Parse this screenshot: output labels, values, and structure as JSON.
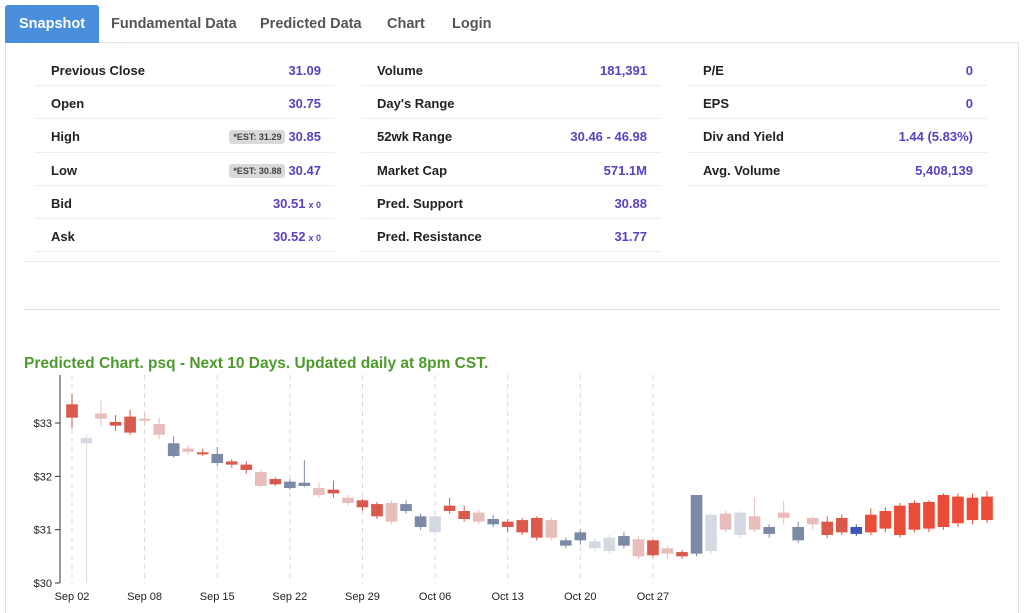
{
  "tabs": [
    {
      "label": "Snapshot",
      "active": true
    },
    {
      "label": "Fundamental Data",
      "active": false
    },
    {
      "label": "Predicted Data",
      "active": false
    },
    {
      "label": "Chart",
      "active": false
    },
    {
      "label": "Login",
      "active": false
    }
  ],
  "snapshot": {
    "col1": {
      "previous_close": {
        "label": "Previous Close",
        "value": "31.09"
      },
      "open": {
        "label": "Open",
        "value": "30.75"
      },
      "high": {
        "label": "High",
        "est": "*EST: 31.29",
        "value": "30.85"
      },
      "low": {
        "label": "Low",
        "est": "*EST: 30.88",
        "value": "30.47"
      },
      "bid": {
        "label": "Bid",
        "value": "30.51",
        "size": "x 0"
      },
      "ask": {
        "label": "Ask",
        "value": "30.52",
        "size": "x 0"
      }
    },
    "col2": {
      "volume": {
        "label": "Volume",
        "value": "181,391"
      },
      "days_range": {
        "label": "Day's Range",
        "value": ""
      },
      "wk52_range": {
        "label": "52wk Range",
        "value": "30.46 - 46.98"
      },
      "market_cap": {
        "label": "Market Cap",
        "value": "571.1M"
      },
      "pred_support": {
        "label": "Pred. Support",
        "value": "30.88"
      },
      "pred_resistance": {
        "label": "Pred. Resistance",
        "value": "31.77"
      }
    },
    "col3": {
      "pe": {
        "label": "P/E",
        "value": "0"
      },
      "eps": {
        "label": "EPS",
        "value": "0"
      },
      "div_yield": {
        "label": "Div and Yield",
        "value": "1.44 (5.83%)"
      },
      "avg_volume": {
        "label": "Avg. Volume",
        "value": "5,408,139"
      }
    }
  },
  "chart_title": "Predicted Chart. psq - Next 10 Days. Updated daily at 8pm CST.",
  "colors": {
    "accent": "#4a8fdc",
    "value": "#5b3fc4",
    "title_green": "#4d9a2c",
    "up_light": "#e9bdbb",
    "down_light": "#d5dae2",
    "up_dark": "#d9594c",
    "down_dark": "#7d8aa6",
    "pred": "#ea4c38",
    "today": "#3d55b8"
  },
  "chart_data": {
    "type": "candlestick",
    "y_ticks": [
      "$30",
      "$31",
      "$32",
      "$33"
    ],
    "ylim": [
      30,
      33.9
    ],
    "x_labels": [
      "Sep 02",
      "Sep 08",
      "Sep 15",
      "Sep 22",
      "Sep 29",
      "Oct 06",
      "Oct 13",
      "Oct 20",
      "Oct 27"
    ],
    "candles": [
      {
        "o": 33.35,
        "c": 33.1,
        "h": 33.55,
        "l": 32.9,
        "dir": "down",
        "k": "hist_up"
      },
      {
        "o": 32.72,
        "c": 32.62,
        "h": 32.78,
        "l": 30.0,
        "dir": "down",
        "k": "hist_dn"
      },
      {
        "o": 33.18,
        "c": 33.08,
        "h": 33.42,
        "l": 32.95,
        "dir": "down",
        "k": "hist_up_l"
      },
      {
        "o": 33.02,
        "c": 32.95,
        "h": 33.15,
        "l": 32.85,
        "dir": "down",
        "k": "hist_up"
      },
      {
        "o": 33.12,
        "c": 32.82,
        "h": 33.25,
        "l": 32.78,
        "dir": "down",
        "k": "hist_up"
      },
      {
        "o": 33.08,
        "c": 33.05,
        "h": 33.2,
        "l": 32.95,
        "dir": "down",
        "k": "hist_up_l"
      },
      {
        "o": 32.98,
        "c": 32.78,
        "h": 33.1,
        "l": 32.7,
        "dir": "down",
        "k": "hist_up_l"
      },
      {
        "o": 32.62,
        "c": 32.38,
        "h": 32.75,
        "l": 32.35,
        "dir": "down",
        "k": "hist_dn_d"
      },
      {
        "o": 32.52,
        "c": 32.46,
        "h": 32.58,
        "l": 32.4,
        "dir": "down",
        "k": "hist_up_l"
      },
      {
        "o": 32.45,
        "c": 32.42,
        "h": 32.52,
        "l": 32.38,
        "dir": "down",
        "k": "hist_up"
      },
      {
        "o": 32.42,
        "c": 32.25,
        "h": 32.55,
        "l": 32.2,
        "dir": "down",
        "k": "hist_dn_d"
      },
      {
        "o": 32.28,
        "c": 32.22,
        "h": 32.32,
        "l": 32.16,
        "dir": "down",
        "k": "hist_up"
      },
      {
        "o": 32.22,
        "c": 32.12,
        "h": 32.28,
        "l": 32.05,
        "dir": "down",
        "k": "hist_up"
      },
      {
        "o": 32.08,
        "c": 31.82,
        "h": 32.12,
        "l": 31.8,
        "dir": "down",
        "k": "hist_up_l"
      },
      {
        "o": 31.95,
        "c": 31.85,
        "h": 31.98,
        "l": 31.82,
        "dir": "down",
        "k": "hist_up"
      },
      {
        "o": 31.9,
        "c": 31.78,
        "h": 31.95,
        "l": 31.75,
        "dir": "down",
        "k": "hist_dn_d"
      },
      {
        "o": 31.88,
        "c": 31.82,
        "h": 32.3,
        "l": 31.8,
        "dir": "down",
        "k": "hist_dn_d"
      },
      {
        "o": 31.78,
        "c": 31.65,
        "h": 31.88,
        "l": 31.6,
        "dir": "down",
        "k": "hist_up_l"
      },
      {
        "o": 31.75,
        "c": 31.68,
        "h": 31.92,
        "l": 31.6,
        "dir": "down",
        "k": "hist_up"
      },
      {
        "o": 31.6,
        "c": 31.5,
        "h": 31.65,
        "l": 31.45,
        "dir": "down",
        "k": "hist_up_l"
      },
      {
        "o": 31.55,
        "c": 31.42,
        "h": 31.58,
        "l": 31.35,
        "dir": "down",
        "k": "hist_up"
      },
      {
        "o": 31.48,
        "c": 31.25,
        "h": 31.52,
        "l": 31.2,
        "dir": "down",
        "k": "hist_up"
      },
      {
        "o": 31.5,
        "c": 31.15,
        "h": 31.55,
        "l": 31.1,
        "dir": "down",
        "k": "hist_up_l"
      },
      {
        "o": 31.48,
        "c": 31.35,
        "h": 31.55,
        "l": 31.3,
        "dir": "down",
        "k": "hist_dn_d"
      },
      {
        "o": 31.25,
        "c": 31.05,
        "h": 31.3,
        "l": 31.0,
        "dir": "down",
        "k": "hist_dn_d"
      },
      {
        "o": 31.25,
        "c": 30.95,
        "h": 31.3,
        "l": 30.9,
        "dir": "down",
        "k": "hist_dn"
      },
      {
        "o": 31.45,
        "c": 31.35,
        "h": 31.6,
        "l": 31.3,
        "dir": "down",
        "k": "hist_up"
      },
      {
        "o": 31.35,
        "c": 31.2,
        "h": 31.45,
        "l": 31.15,
        "dir": "down",
        "k": "hist_up"
      },
      {
        "o": 31.32,
        "c": 31.15,
        "h": 31.38,
        "l": 31.1,
        "dir": "down",
        "k": "hist_up_l"
      },
      {
        "o": 31.2,
        "c": 31.1,
        "h": 31.28,
        "l": 31.05,
        "dir": "down",
        "k": "hist_dn_d"
      },
      {
        "o": 31.15,
        "c": 31.05,
        "h": 31.2,
        "l": 30.95,
        "dir": "down",
        "k": "hist_up"
      },
      {
        "o": 31.18,
        "c": 30.95,
        "h": 31.22,
        "l": 30.9,
        "dir": "down",
        "k": "hist_up"
      },
      {
        "o": 31.22,
        "c": 30.85,
        "h": 31.25,
        "l": 30.8,
        "dir": "down",
        "k": "hist_up"
      },
      {
        "o": 31.18,
        "c": 30.85,
        "h": 31.22,
        "l": 30.8,
        "dir": "down",
        "k": "hist_up_l"
      },
      {
        "o": 30.8,
        "c": 30.7,
        "h": 30.85,
        "l": 30.65,
        "dir": "down",
        "k": "hist_dn_d"
      },
      {
        "o": 30.95,
        "c": 30.8,
        "h": 31.0,
        "l": 30.72,
        "dir": "down",
        "k": "hist_dn_d"
      },
      {
        "o": 30.78,
        "c": 30.65,
        "h": 30.82,
        "l": 30.6,
        "dir": "down",
        "k": "hist_dn"
      },
      {
        "o": 30.85,
        "c": 30.6,
        "h": 30.9,
        "l": 30.55,
        "dir": "down",
        "k": "hist_dn"
      },
      {
        "o": 30.88,
        "c": 30.7,
        "h": 30.95,
        "l": 30.65,
        "dir": "down",
        "k": "hist_dn_d"
      },
      {
        "o": 30.82,
        "c": 30.5,
        "h": 30.88,
        "l": 30.45,
        "dir": "down",
        "k": "hist_up_l"
      },
      {
        "o": 30.8,
        "c": 30.52,
        "h": 30.82,
        "l": 30.48,
        "dir": "down",
        "k": "hist_up"
      },
      {
        "o": 30.65,
        "c": 30.55,
        "h": 30.7,
        "l": 30.45,
        "dir": "down",
        "k": "hist_up_l"
      },
      {
        "o": 30.58,
        "c": 30.5,
        "h": 30.62,
        "l": 30.45,
        "dir": "down",
        "k": "hist_up"
      },
      {
        "o": 31.65,
        "c": 30.55,
        "h": 31.65,
        "l": 30.5,
        "dir": "down",
        "k": "hist_dn_d"
      },
      {
        "o": 31.28,
        "c": 30.6,
        "h": 31.3,
        "l": 30.55,
        "dir": "down",
        "k": "hist_dn"
      },
      {
        "o": 31.3,
        "c": 31.0,
        "h": 31.35,
        "l": 30.95,
        "dir": "down",
        "k": "hist_up_l"
      },
      {
        "o": 31.32,
        "c": 30.9,
        "h": 31.35,
        "l": 30.85,
        "dir": "down",
        "k": "hist_dn"
      },
      {
        "o": 31.25,
        "c": 31.0,
        "h": 31.6,
        "l": 30.95,
        "dir": "down",
        "k": "hist_up_l"
      },
      {
        "o": 31.05,
        "c": 30.92,
        "h": 31.1,
        "l": 30.85,
        "dir": "down",
        "k": "hist_dn_d"
      },
      {
        "o": 31.32,
        "c": 31.22,
        "h": 31.55,
        "l": 31.1,
        "dir": "down",
        "k": "hist_up_l"
      },
      {
        "o": 31.05,
        "c": 30.8,
        "h": 31.15,
        "l": 30.75,
        "dir": "down",
        "k": "hist_dn_d"
      },
      {
        "o": 31.22,
        "c": 31.1,
        "h": 31.25,
        "l": 31.0,
        "dir": "down",
        "k": "hist_up_l"
      },
      {
        "o": 31.15,
        "c": 30.9,
        "h": 31.25,
        "l": 30.85,
        "dir": "down",
        "k": "hist_up"
      },
      {
        "o": 31.22,
        "c": 30.95,
        "h": 31.28,
        "l": 30.9,
        "dir": "down",
        "k": "hist_up"
      },
      {
        "o": 31.05,
        "c": 30.92,
        "h": 31.1,
        "l": 30.88,
        "dir": "down",
        "k": "today"
      },
      {
        "o": 30.95,
        "c": 31.28,
        "h": 31.4,
        "l": 30.9,
        "dir": "up",
        "k": "pred"
      },
      {
        "o": 31.02,
        "c": 31.35,
        "h": 31.42,
        "l": 30.95,
        "dir": "up",
        "k": "pred"
      },
      {
        "o": 30.9,
        "c": 31.45,
        "h": 31.5,
        "l": 30.85,
        "dir": "up",
        "k": "pred"
      },
      {
        "o": 31.0,
        "c": 31.5,
        "h": 31.55,
        "l": 30.95,
        "dir": "up",
        "k": "pred"
      },
      {
        "o": 31.02,
        "c": 31.52,
        "h": 31.55,
        "l": 30.95,
        "dir": "up",
        "k": "pred"
      },
      {
        "o": 31.05,
        "c": 31.65,
        "h": 31.68,
        "l": 31.0,
        "dir": "up",
        "k": "pred"
      },
      {
        "o": 31.12,
        "c": 31.62,
        "h": 31.68,
        "l": 31.05,
        "dir": "up",
        "k": "pred"
      },
      {
        "o": 31.18,
        "c": 31.6,
        "h": 31.68,
        "l": 31.1,
        "dir": "up",
        "k": "pred"
      },
      {
        "o": 31.18,
        "c": 31.62,
        "h": 31.72,
        "l": 31.12,
        "dir": "up",
        "k": "pred"
      }
    ]
  }
}
